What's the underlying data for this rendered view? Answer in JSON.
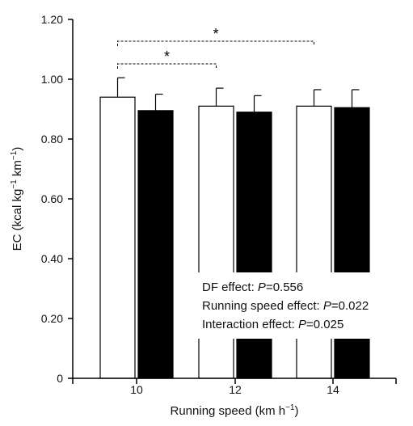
{
  "chart_data": {
    "type": "bar",
    "xlabel_parts": {
      "main": "Running speed (km h",
      "sup": "−1",
      "tail": ")"
    },
    "ylabel_parts": {
      "a": "EC (kcal kg",
      "sup1": "−1",
      "b": " km",
      "sup2": "−1",
      "c": ")"
    },
    "categories": [
      "10",
      "12",
      "14"
    ],
    "ylim": [
      0,
      1.2
    ],
    "yticks": [
      "0",
      "0.20",
      "0.40",
      "0.60",
      "0.80",
      "1.00",
      "1.20"
    ],
    "ytick_values": [
      0,
      0.2,
      0.4,
      0.6,
      0.8,
      1.0,
      1.2
    ],
    "series": [
      {
        "values": [
          0.94,
          0.91,
          0.91
        ],
        "errors": [
          0.065,
          0.06,
          0.055
        ],
        "color": "#ffffff"
      },
      {
        "values": [
          0.895,
          0.89,
          0.905
        ],
        "errors": [
          0.055,
          0.055,
          0.06
        ],
        "color": "#000000"
      }
    ],
    "significance": [
      {
        "from": "10",
        "to": "12",
        "label": "*"
      },
      {
        "from": "10",
        "to": "14",
        "label": "*"
      }
    ],
    "annotations": {
      "df_label": "DF effect: ",
      "df_p": "P",
      "df_val": "=0.556",
      "rs_label": "Running speed effect: ",
      "rs_p": "P",
      "rs_val": "=0.022",
      "ix_label": "Interaction effect: ",
      "ix_p": "P",
      "ix_val": "=0.025"
    }
  }
}
